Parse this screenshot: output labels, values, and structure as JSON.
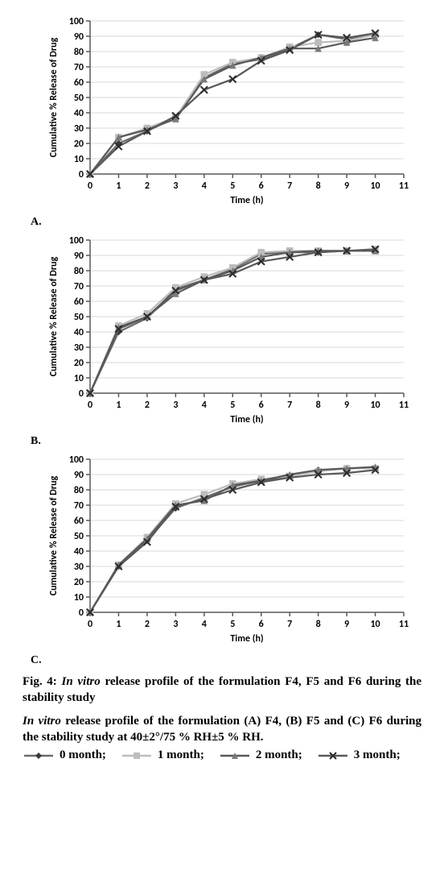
{
  "figure": {
    "fig_label": "Fig. 4:",
    "title_line1": "In vitro release profile of the formulation F4, F5 and F6 during the stability study",
    "title_line2_prefix": "In vitro",
    "title_line2_rest": " release profile of the formulation (A) F4, (B) F5 and (C) F6 during the stability study at 40±2°/75 % RH±5 % RH."
  },
  "legend": {
    "items": [
      {
        "label": "0 month",
        "marker": "diamond",
        "line_color": "#6b6b6b",
        "marker_color": "#3a3a3a"
      },
      {
        "label": "1 month",
        "marker": "square",
        "line_color": "#bdbdbd",
        "marker_color": "#bdbdbd"
      },
      {
        "label": "2 month",
        "marker": "triangle",
        "line_color": "#595959",
        "marker_color": "#7a7a7a"
      },
      {
        "label": "3 month",
        "marker": "x",
        "line_color": "#595959",
        "marker_color": "#2b2b2b"
      }
    ]
  },
  "axes": {
    "xlabel": "Time (h)",
    "ylabel": "Cumulative % Release of Drug",
    "xlim": [
      0,
      11
    ],
    "ylim": [
      0,
      100
    ],
    "xticks": [
      0,
      1,
      2,
      3,
      4,
      5,
      6,
      7,
      8,
      9,
      10,
      11
    ],
    "yticks": [
      0,
      10,
      20,
      30,
      40,
      50,
      60,
      70,
      80,
      90,
      100
    ],
    "grid_color": "#d9d9d9",
    "axis_color": "#595959",
    "tick_font_size": 12,
    "label_font_size": 12,
    "font_weight": "bold",
    "font_family": "Calibri, Arial, sans-serif",
    "line_width": 2.2,
    "marker_size": 6
  },
  "panels": [
    {
      "label": "A.",
      "x": [
        0,
        1,
        2,
        3,
        4,
        5,
        6,
        7,
        8,
        9,
        10
      ],
      "series": [
        {
          "name": "0 month",
          "y": [
            0,
            20,
            28,
            37,
            63,
            72,
            75,
            82,
            91,
            88,
            91
          ],
          "marker": "diamond",
          "line_color": "#6b6b6b",
          "marker_color": "#3a3a3a"
        },
        {
          "name": "1 month",
          "y": [
            0,
            24,
            30,
            37,
            65,
            73,
            76,
            83,
            86,
            87,
            91
          ],
          "marker": "square",
          "line_color": "#bdbdbd",
          "marker_color": "#bdbdbd"
        },
        {
          "name": "2 month",
          "y": [
            0,
            24,
            29,
            36,
            62,
            71,
            76,
            82,
            82,
            86,
            89
          ],
          "marker": "triangle",
          "line_color": "#595959",
          "marker_color": "#7a7a7a"
        },
        {
          "name": "3 month",
          "y": [
            0,
            18,
            28,
            38,
            55,
            62,
            74,
            81,
            91,
            89,
            92
          ],
          "marker": "x",
          "line_color": "#595959",
          "marker_color": "#2b2b2b"
        }
      ]
    },
    {
      "label": "B.",
      "x": [
        0,
        1,
        2,
        3,
        4,
        5,
        6,
        7,
        8,
        9,
        10
      ],
      "series": [
        {
          "name": "0 month",
          "y": [
            0,
            40,
            49,
            68,
            74,
            81,
            91,
            92,
            92,
            93,
            93
          ],
          "marker": "diamond",
          "line_color": "#6b6b6b",
          "marker_color": "#3a3a3a"
        },
        {
          "name": "1 month",
          "y": [
            0,
            44,
            52,
            69,
            76,
            82,
            92,
            93,
            93,
            93,
            94
          ],
          "marker": "square",
          "line_color": "#bdbdbd",
          "marker_color": "#bdbdbd"
        },
        {
          "name": "2 month",
          "y": [
            0,
            43,
            50,
            65,
            74,
            80,
            89,
            92,
            93,
            93,
            93
          ],
          "marker": "triangle",
          "line_color": "#595959",
          "marker_color": "#7a7a7a"
        },
        {
          "name": "3 month",
          "y": [
            0,
            42,
            50,
            67,
            74,
            78,
            86,
            89,
            92,
            93,
            94
          ],
          "marker": "x",
          "line_color": "#595959",
          "marker_color": "#2b2b2b"
        }
      ]
    },
    {
      "label": "C.",
      "x": [
        0,
        1,
        2,
        3,
        4,
        5,
        6,
        7,
        8,
        9,
        10
      ],
      "series": [
        {
          "name": "0 month",
          "y": [
            0,
            30,
            47,
            68,
            75,
            82,
            86,
            89,
            93,
            94,
            94
          ],
          "marker": "diamond",
          "line_color": "#6b6b6b",
          "marker_color": "#3a3a3a"
        },
        {
          "name": "1 month",
          "y": [
            0,
            31,
            49,
            71,
            77,
            84,
            87,
            89,
            92,
            94,
            94
          ],
          "marker": "square",
          "line_color": "#bdbdbd",
          "marker_color": "#bdbdbd"
        },
        {
          "name": "2 month",
          "y": [
            0,
            31,
            48,
            70,
            73,
            83,
            86,
            90,
            93,
            94,
            95
          ],
          "marker": "triangle",
          "line_color": "#595959",
          "marker_color": "#7a7a7a"
        },
        {
          "name": "3 month",
          "y": [
            0,
            30,
            46,
            69,
            74,
            80,
            85,
            88,
            90,
            91,
            93
          ],
          "marker": "x",
          "line_color": "#595959",
          "marker_color": "#2b2b2b"
        }
      ]
    }
  ]
}
